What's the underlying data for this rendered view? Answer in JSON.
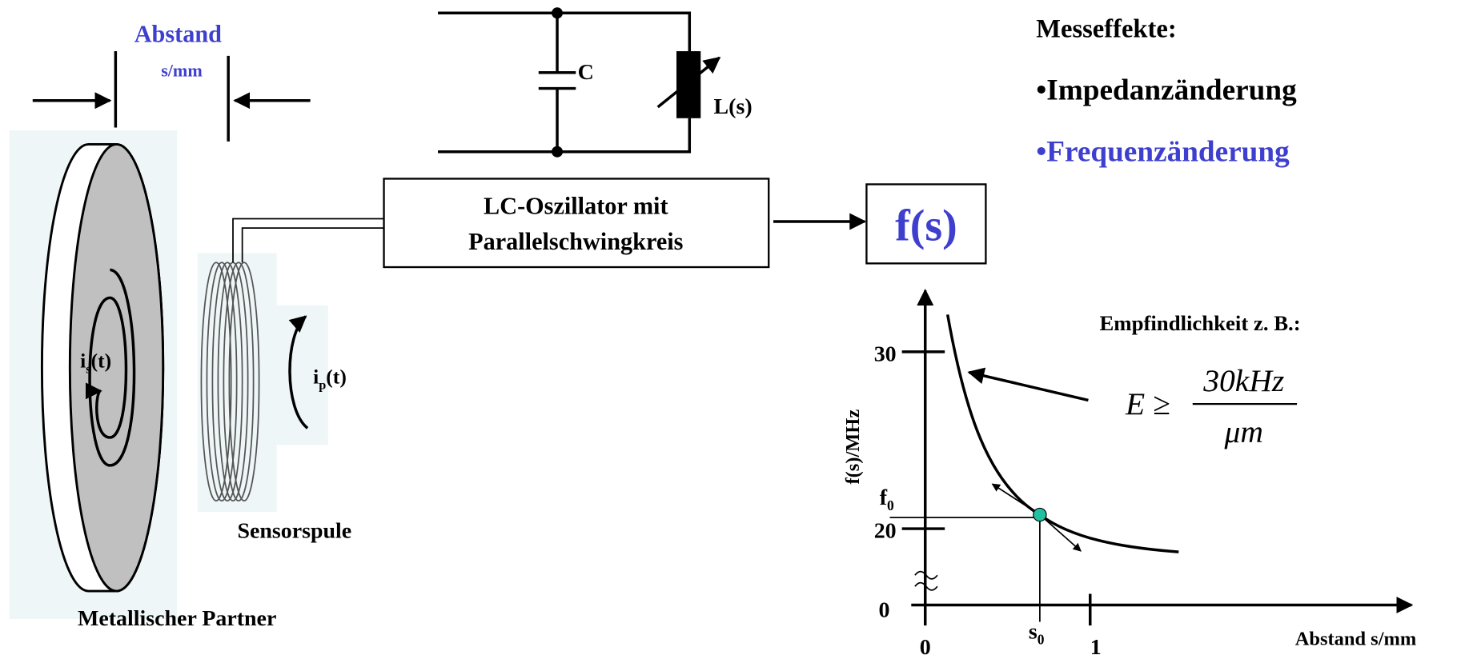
{
  "distance": {
    "label": "Abstand",
    "unit": "s/mm"
  },
  "circuit": {
    "capacitor": "C",
    "inductor": "L(s)"
  },
  "effects": {
    "title": "Messeffekte:",
    "items": [
      "•Impedanzänderung",
      "•Frequenzänderung"
    ]
  },
  "oscillator": {
    "lines": [
      "LC-Oszillator mit",
      "Parallelschwingkreis"
    ]
  },
  "output": "f(s)",
  "sensitivity": {
    "title": "Empfindlichkeit z. B.:",
    "lhs": "E ≥",
    "numerator": "30kHz",
    "denominator": "μm"
  },
  "target_current": {
    "main": "i",
    "sub": "s",
    "rest": "(t)"
  },
  "coil_current": {
    "main": "i",
    "sub": "p",
    "rest": "(t)"
  },
  "coil_label": "Sensorspule",
  "target_label": "Metallischer Partner",
  "graph": {
    "y_axis_label": "f(s)/MHz",
    "x_axis_label": "Abstand s/mm",
    "y_ticks": [
      "30",
      "20",
      "0"
    ],
    "f0": {
      "main": "f",
      "sub": "0"
    },
    "x_ticks": [
      "0",
      "1"
    ],
    "s0": {
      "main": "s",
      "sub": "0"
    }
  }
}
